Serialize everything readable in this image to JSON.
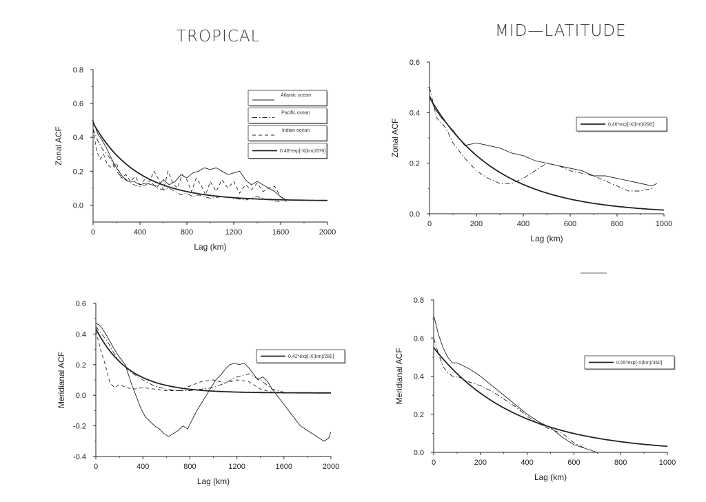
{
  "headings": {
    "left": "TROPICAL",
    "right": "MID—LATITUDE"
  },
  "chart_data": [
    {
      "id": "trop_zonal",
      "type": "line",
      "xlabel": "Lag (km)",
      "ylabel": "Zonal ACF",
      "xlim": [
        0,
        2000
      ],
      "ylim": [
        -0.1,
        0.8
      ],
      "xticks": [
        "0",
        "400",
        "800",
        "1200",
        "1600",
        "2000"
      ],
      "xtick_values": [
        0,
        400,
        800,
        1200,
        1600,
        2000
      ],
      "yticks": [
        "0.0",
        "0.2",
        "0.4",
        "0.6",
        "0.8"
      ],
      "ytick_values": [
        0,
        0.2,
        0.4,
        0.6,
        0.8
      ],
      "legend_position": "right",
      "series": [
        {
          "name": "Atlantic ocean",
          "style": "thin",
          "x": [
            0,
            40,
            80,
            120,
            160,
            200,
            250,
            300,
            350,
            400,
            450,
            500,
            550,
            600,
            650,
            700,
            750,
            800,
            850,
            900,
            950,
            1000,
            1050,
            1100,
            1150,
            1200,
            1250,
            1300,
            1350,
            1400,
            1450,
            1500,
            1550,
            1600,
            1650
          ],
          "y": [
            0.5,
            0.42,
            0.38,
            0.33,
            0.27,
            0.22,
            0.17,
            0.14,
            0.14,
            0.12,
            0.13,
            0.12,
            0.11,
            0.15,
            0.12,
            0.14,
            0.18,
            0.16,
            0.19,
            0.2,
            0.22,
            0.21,
            0.22,
            0.2,
            0.18,
            0.19,
            0.2,
            0.15,
            0.12,
            0.14,
            0.12,
            0.1,
            0.08,
            0.05,
            0.03
          ]
        },
        {
          "name": "Pacific ocean",
          "style": "dashdot",
          "x": [
            0,
            40,
            80,
            120,
            160,
            200,
            250,
            300,
            350,
            400,
            450,
            500,
            550,
            600,
            650,
            700,
            750,
            800,
            850,
            900,
            950,
            1000,
            1100,
            1200,
            1300,
            1400,
            1500,
            1600
          ],
          "y": [
            0.45,
            0.38,
            0.33,
            0.3,
            0.26,
            0.2,
            0.16,
            0.14,
            0.12,
            0.11,
            0.12,
            0.13,
            0.1,
            0.09,
            0.1,
            0.08,
            0.06,
            0.07,
            0.05,
            0.06,
            0.05,
            0.04,
            0.05,
            0.04,
            0.03,
            0.05,
            0.03,
            0.02
          ]
        },
        {
          "name": "Indian ocean",
          "style": "dashed",
          "x": [
            0,
            30,
            60,
            90,
            120,
            160,
            200,
            240,
            280,
            320,
            360,
            400,
            440,
            480,
            520,
            560,
            600,
            640,
            680,
            720,
            760,
            800,
            840,
            880,
            920,
            960,
            1000,
            1050,
            1100,
            1150,
            1200,
            1250,
            1300,
            1350,
            1400,
            1450,
            1500,
            1550,
            1600,
            1650
          ],
          "y": [
            0.45,
            0.32,
            0.27,
            0.3,
            0.24,
            0.22,
            0.25,
            0.16,
            0.18,
            0.14,
            0.17,
            0.12,
            0.15,
            0.14,
            0.2,
            0.15,
            0.09,
            0.2,
            0.13,
            0.1,
            0.18,
            0.15,
            0.08,
            0.16,
            0.12,
            0.06,
            0.14,
            0.08,
            0.15,
            0.1,
            0.14,
            0.07,
            0.12,
            0.09,
            0.13,
            0.08,
            0.1,
            0.11,
            0.05,
            0.02
          ]
        },
        {
          "name": "0.46*exp[-X(km)/376]",
          "style": "fit",
          "a": 0.46,
          "L": 376,
          "c": 0.025
        }
      ]
    },
    {
      "id": "mid_zonal",
      "type": "line",
      "xlabel": "Lag (km)",
      "ylabel": "Zonal ACF",
      "xlim": [
        0,
        1000
      ],
      "ylim": [
        0,
        0.6
      ],
      "xticks": [
        "0",
        "200",
        "400",
        "600",
        "800",
        "1000"
      ],
      "xtick_values": [
        0,
        200,
        400,
        600,
        800,
        1000
      ],
      "yticks": [
        "0.0",
        "0.2",
        "0.4",
        "0.6"
      ],
      "ytick_values": [
        0,
        0.2,
        0.4,
        0.6
      ],
      "legend_position": "top-right",
      "series": [
        {
          "style": "thin",
          "x": [
            0,
            20,
            50,
            100,
            150,
            200,
            250,
            300,
            350,
            400,
            450,
            500,
            550,
            600,
            650,
            700,
            750,
            800,
            850,
            900,
            950,
            970
          ],
          "y": [
            0.47,
            0.42,
            0.38,
            0.33,
            0.27,
            0.28,
            0.27,
            0.26,
            0.24,
            0.23,
            0.21,
            0.2,
            0.19,
            0.18,
            0.17,
            0.15,
            0.15,
            0.14,
            0.13,
            0.12,
            0.11,
            0.12
          ]
        },
        {
          "style": "dashdot",
          "x": [
            0,
            10,
            30,
            60,
            80,
            100,
            150,
            200,
            250,
            300,
            350,
            400,
            450,
            500,
            550,
            600,
            650,
            700,
            750,
            800,
            850,
            900,
            950
          ],
          "y": [
            0.5,
            0.46,
            0.38,
            0.35,
            0.32,
            0.28,
            0.22,
            0.17,
            0.14,
            0.12,
            0.12,
            0.14,
            0.17,
            0.2,
            0.19,
            0.17,
            0.16,
            0.15,
            0.13,
            0.11,
            0.09,
            0.09,
            0.1
          ]
        },
        {
          "name": "0.46*exp[-X(km)/290]",
          "style": "fit",
          "a": 0.46,
          "L": 290,
          "c": 0
        }
      ]
    },
    {
      "id": "trop_merid",
      "type": "line",
      "xlabel": "Lag (km)",
      "ylabel": "Meridianal ACF",
      "xlim": [
        0,
        2000
      ],
      "ylim": [
        -0.4,
        0.6
      ],
      "xticks": [
        "0",
        "400",
        "800",
        "1200",
        "1600",
        "2000"
      ],
      "xtick_values": [
        0,
        400,
        800,
        1200,
        1600,
        2000
      ],
      "yticks": [
        "-0.4",
        "-0.2",
        "0.0",
        "0.2",
        "0.4",
        "0.6"
      ],
      "ytick_values": [
        -0.4,
        -0.2,
        0,
        0.2,
        0.4,
        0.6
      ],
      "legend_position": "right",
      "series": [
        {
          "style": "thin",
          "x": [
            0,
            30,
            60,
            100,
            150,
            200,
            250,
            300,
            340,
            380,
            420,
            460,
            500,
            540,
            580,
            620,
            660,
            700,
            740,
            780,
            820,
            860,
            900,
            940,
            980,
            1020,
            1060,
            1100,
            1140,
            1180,
            1220,
            1260,
            1300,
            1340,
            1380,
            1420,
            1460,
            1500,
            1540,
            1580,
            1620,
            1660,
            1700,
            1740,
            1780,
            1820,
            1860,
            1900,
            1940,
            1980,
            2000
          ],
          "y": [
            0.47,
            0.46,
            0.43,
            0.38,
            0.31,
            0.25,
            0.2,
            0.08,
            0.0,
            -0.08,
            -0.14,
            -0.17,
            -0.2,
            -0.22,
            -0.25,
            -0.27,
            -0.25,
            -0.23,
            -0.2,
            -0.22,
            -0.16,
            -0.1,
            -0.05,
            0.0,
            0.05,
            0.1,
            0.13,
            0.17,
            0.2,
            0.21,
            0.2,
            0.21,
            0.18,
            0.14,
            0.1,
            0.12,
            0.09,
            0.04,
            0.0,
            -0.04,
            -0.08,
            -0.12,
            -0.16,
            -0.2,
            -0.22,
            -0.24,
            -0.26,
            -0.28,
            -0.3,
            -0.28,
            -0.24
          ]
        },
        {
          "style": "dashdot",
          "x": [
            0,
            50,
            100,
            150,
            200,
            300,
            400,
            500,
            600,
            700,
            800,
            900,
            1000,
            1100,
            1200,
            1300,
            1400,
            1500,
            1600
          ],
          "y": [
            0.45,
            0.4,
            0.35,
            0.28,
            0.22,
            0.15,
            0.1,
            0.06,
            0.04,
            0.03,
            0.03,
            0.04,
            0.05,
            0.08,
            0.12,
            0.14,
            0.1,
            0.04,
            0.02
          ]
        },
        {
          "style": "dashed",
          "x": [
            0,
            40,
            80,
            120,
            160,
            200,
            260,
            320,
            400,
            500,
            600,
            700,
            800,
            900,
            1000,
            1100,
            1200,
            1300,
            1400,
            1500,
            1600
          ],
          "y": [
            0.42,
            0.3,
            0.2,
            0.08,
            0.05,
            0.07,
            0.05,
            0.04,
            0.05,
            0.04,
            0.03,
            0.03,
            0.06,
            0.09,
            0.1,
            0.08,
            0.1,
            0.09,
            0.04,
            0.02,
            0.02
          ]
        },
        {
          "name": "0.42*exp[-X(km)/280]",
          "style": "fit",
          "a": 0.42,
          "L": 280,
          "c": 0.015
        }
      ]
    },
    {
      "id": "mid_merid",
      "type": "line",
      "xlabel": "Lag (km)",
      "ylabel": "Meridianal ACF",
      "xlim": [
        0,
        1000
      ],
      "ylim": [
        0,
        0.8
      ],
      "xticks": [
        "0",
        "200",
        "400",
        "600",
        "800",
        "1000"
      ],
      "xtick_values": [
        0,
        200,
        400,
        600,
        800,
        1000
      ],
      "yticks": [
        "0.0",
        "0.2",
        "0.4",
        "0.6",
        "0.8"
      ],
      "ytick_values": [
        0,
        0.2,
        0.4,
        0.6,
        0.8
      ],
      "legend_position": "top-right",
      "series": [
        {
          "style": "thin",
          "x": [
            0,
            20,
            40,
            60,
            80,
            100,
            150,
            200,
            250,
            300,
            350,
            400,
            450,
            500,
            550,
            600,
            650,
            700
          ],
          "y": [
            0.72,
            0.62,
            0.55,
            0.5,
            0.47,
            0.47,
            0.44,
            0.4,
            0.35,
            0.3,
            0.25,
            0.2,
            0.16,
            0.13,
            0.08,
            0.04,
            0.02,
            0.0
          ]
        },
        {
          "style": "dashdot",
          "x": [
            0,
            20,
            40,
            60,
            80,
            100,
            150,
            200,
            250,
            300,
            350,
            400,
            450,
            500,
            550,
            600,
            650
          ],
          "y": [
            0.6,
            0.52,
            0.45,
            0.42,
            0.4,
            0.4,
            0.37,
            0.35,
            0.32,
            0.28,
            0.24,
            0.19,
            0.15,
            0.12,
            0.1,
            0.05,
            0.02
          ]
        },
        {
          "name": "0.55*exp[-X(km)/350]",
          "style": "fit",
          "a": 0.55,
          "L": 350,
          "c": 0
        }
      ]
    }
  ]
}
